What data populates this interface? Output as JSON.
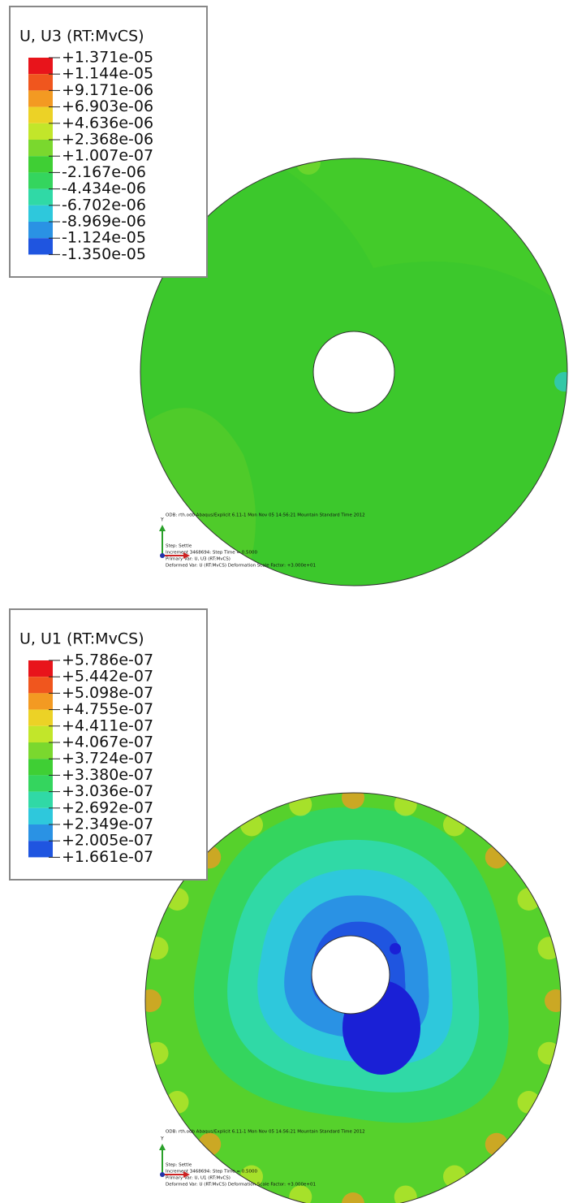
{
  "panels": [
    {
      "legend": {
        "title": "U, U3 (RT:MvCS)",
        "values": [
          "+1.371e-05",
          "+1.144e-05",
          "+9.171e-06",
          "+6.903e-06",
          "+4.636e-06",
          "+2.368e-06",
          "+1.007e-07",
          "-2.167e-06",
          "-4.434e-06",
          "-6.702e-06",
          "-8.969e-06",
          "-1.124e-05",
          "-1.350e-05"
        ]
      },
      "info": {
        "odb": "ODB: rth.odb    Abaqus/Explicit 6.11-1    Mon Nov 05 14:56:21 Mountain Standard Time 2012",
        "lines": [
          "Step: Settle",
          "Increment   3468694: Step Time =    0.5000",
          "Primary Var: U, U3 (RT:MvCS)",
          "Deformed Var: U (RT:MvCS)   Deformation Scale Factor: +3.000e+01"
        ],
        "axis": "Y"
      }
    },
    {
      "legend": {
        "title": "U, U1 (RT:MvCS)",
        "values": [
          "+5.786e-07",
          "+5.442e-07",
          "+5.098e-07",
          "+4.755e-07",
          "+4.411e-07",
          "+4.067e-07",
          "+3.724e-07",
          "+3.380e-07",
          "+3.036e-07",
          "+2.692e-07",
          "+2.349e-07",
          "+2.005e-07",
          "+1.661e-07"
        ]
      },
      "info": {
        "odb": "ODB: rth.odb    Abaqus/Explicit 6.11-1    Mon Nov 05 14:56:21 Mountain Standard Time 2012",
        "lines": [
          "Step: Settle",
          "Increment   3468694: Step Time =    0.5000",
          "Primary Var: U, U1 (RT:MvCS)",
          "Deformed Var: U (RT:MvCS)   Deformation Scale Factor: +3.000e+01"
        ],
        "axis": "Y"
      }
    }
  ]
}
